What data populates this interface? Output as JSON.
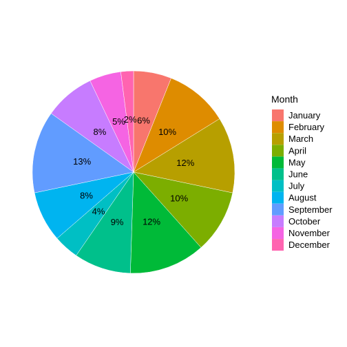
{
  "chart_data": {
    "type": "pie",
    "legend": {
      "title": "Month",
      "position": "right"
    },
    "slices": [
      {
        "label": "January",
        "value": 6,
        "display": "6%",
        "color": "#F8766D"
      },
      {
        "label": "February",
        "value": 10,
        "display": "10%",
        "color": "#DE8C00"
      },
      {
        "label": "March",
        "value": 12,
        "display": "12%",
        "color": "#B79F00"
      },
      {
        "label": "April",
        "value": 10,
        "display": "10%",
        "color": "#7CAE00"
      },
      {
        "label": "May",
        "value": 12,
        "display": "12%",
        "color": "#00BA38"
      },
      {
        "label": "June",
        "value": 9,
        "display": "9%",
        "color": "#00C08B"
      },
      {
        "label": "July",
        "value": 4,
        "display": "4%",
        "color": "#00BFC4"
      },
      {
        "label": "August",
        "value": 8,
        "display": "8%",
        "color": "#00B4F0"
      },
      {
        "label": "September",
        "value": 13,
        "display": "13%",
        "color": "#619CFF"
      },
      {
        "label": "October",
        "value": 8,
        "display": "8%",
        "color": "#C77CFF"
      },
      {
        "label": "November",
        "value": 5,
        "display": "5%",
        "color": "#F564E3"
      },
      {
        "label": "December",
        "value": 2,
        "display": "2%",
        "color": "#FF64B0"
      }
    ]
  }
}
